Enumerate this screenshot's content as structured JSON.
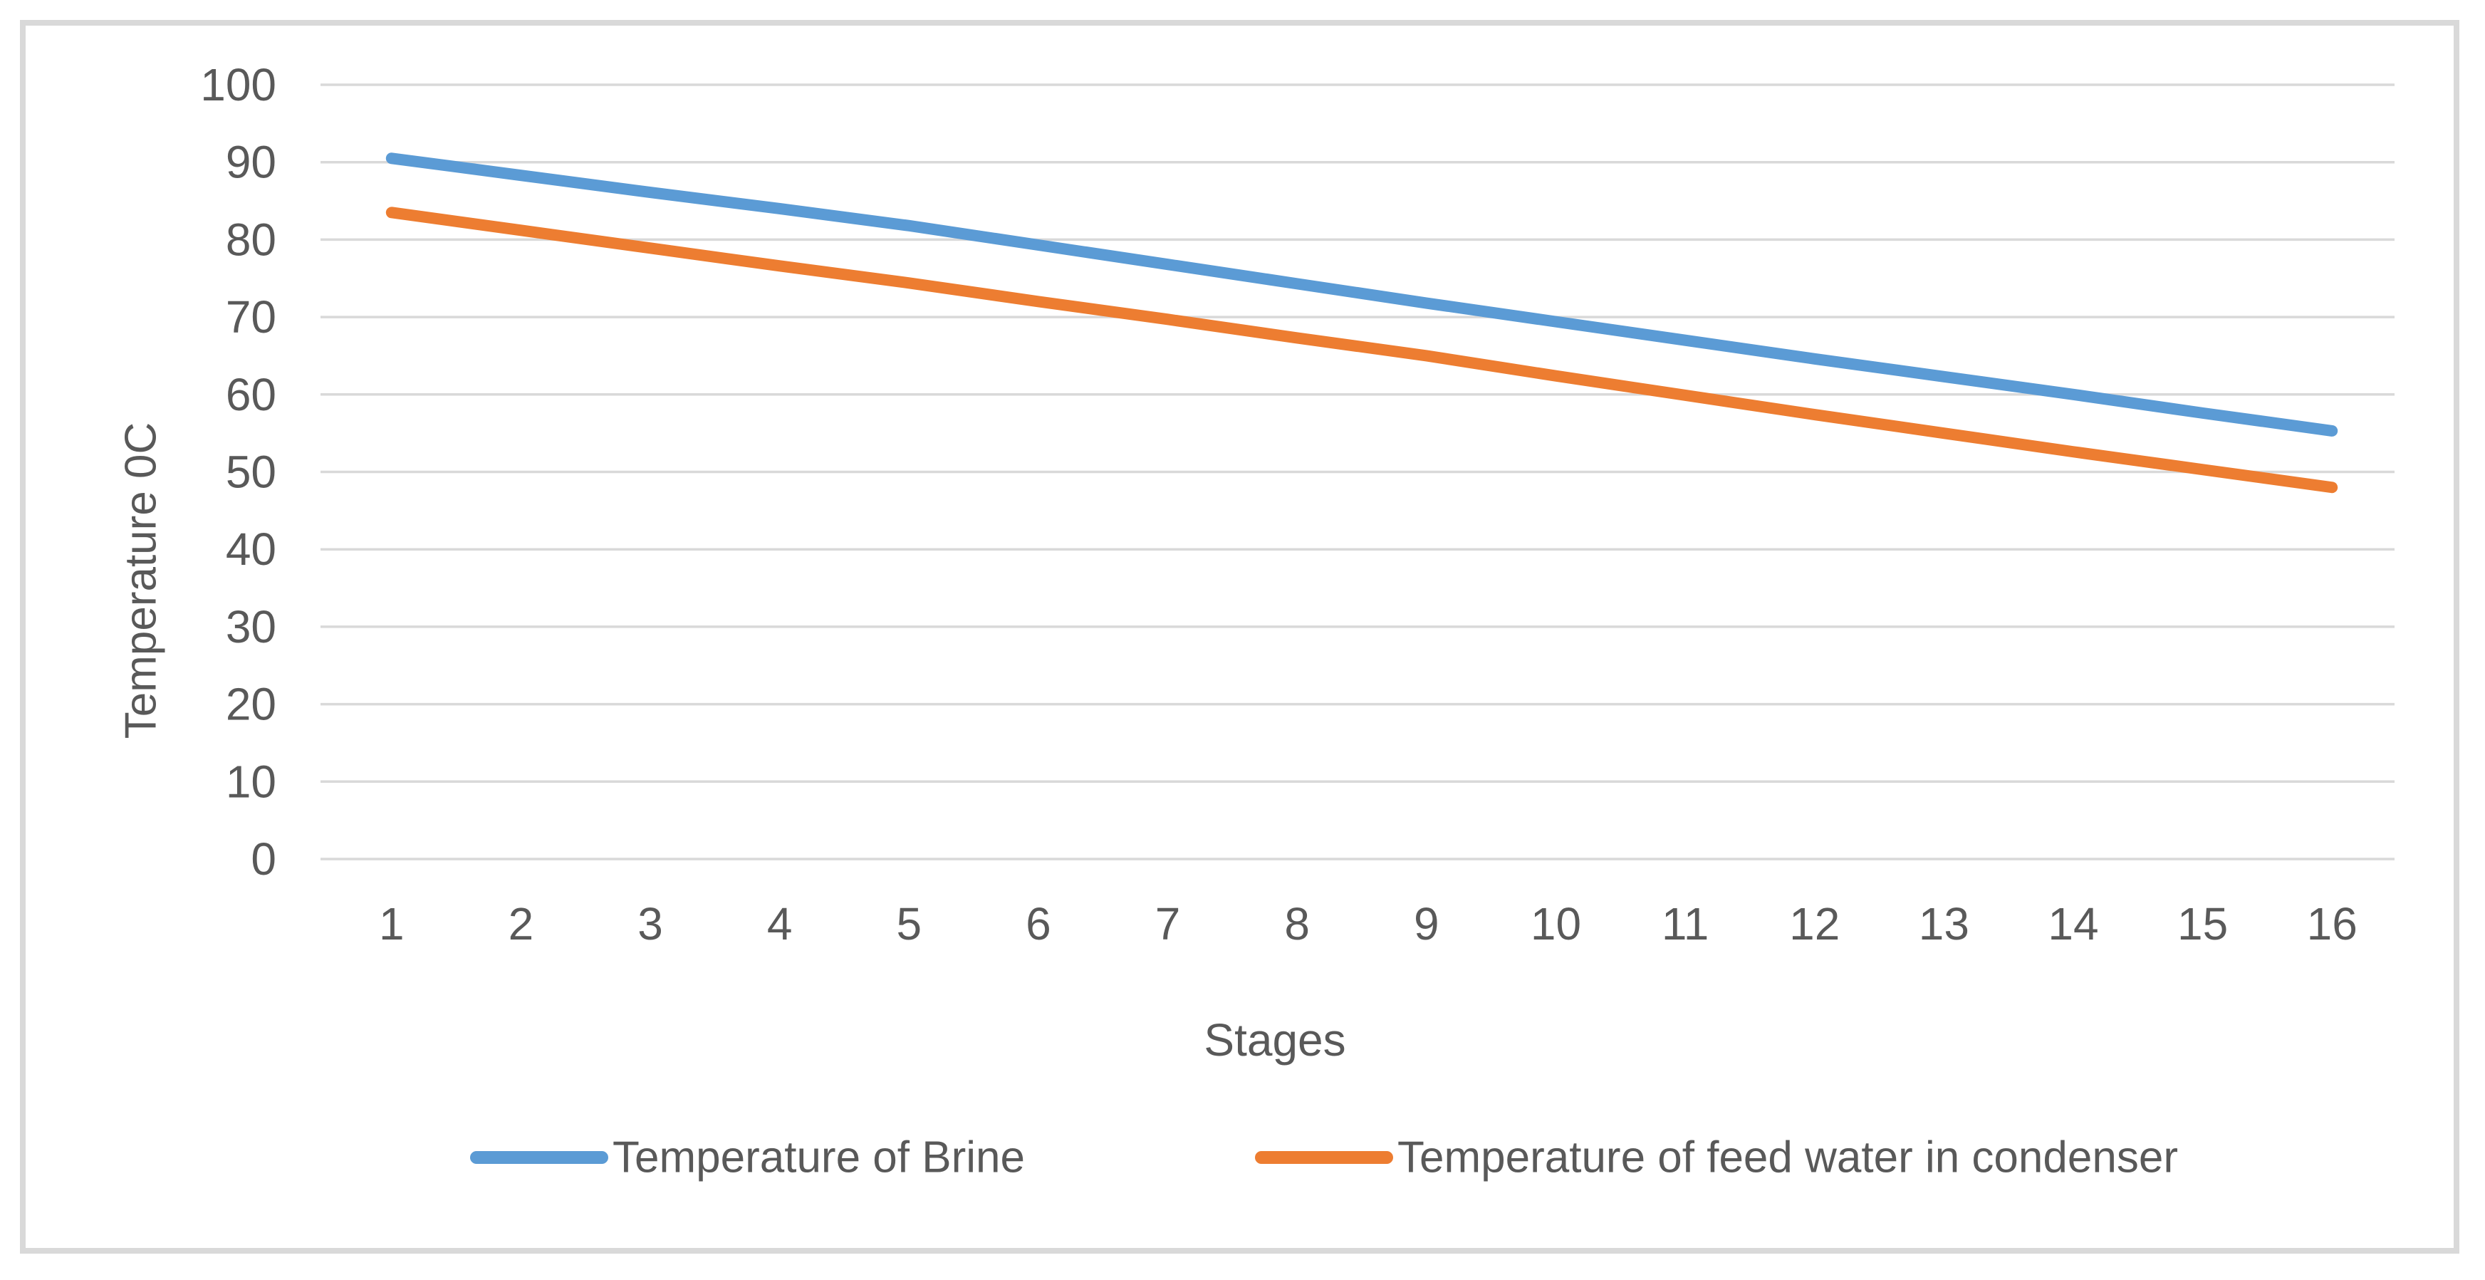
{
  "page": {
    "background_color": "#ffffff",
    "border_color": "#d9d9d9"
  },
  "chart_data": {
    "type": "line",
    "title": "",
    "xlabel": "Stages",
    "ylabel": "Temperature 0C",
    "x": [
      1,
      2,
      3,
      4,
      5,
      6,
      7,
      8,
      9,
      10,
      11,
      12,
      13,
      14,
      15,
      16
    ],
    "y_ticks": [
      0,
      10,
      20,
      30,
      40,
      50,
      60,
      70,
      80,
      90,
      100
    ],
    "ylim": [
      0,
      100
    ],
    "grid": "horizontal",
    "gridline_color": "#d9d9d9",
    "axis_text_color": "#595959",
    "legend_position": "bottom",
    "series": [
      {
        "name": "Temperature of Brine",
        "color": "#5B9BD5",
        "values": [
          90.5,
          88.3,
          86.1,
          84.0,
          81.8,
          79.3,
          76.8,
          74.3,
          71.8,
          69.4,
          67.0,
          64.6,
          62.3,
          60.0,
          57.6,
          55.3
        ]
      },
      {
        "name": "Temperature of feed water in condenser",
        "color": "#ED7D31",
        "values": [
          83.5,
          81.2,
          78.9,
          76.6,
          74.4,
          72.0,
          69.7,
          67.3,
          65.0,
          62.4,
          59.9,
          57.4,
          55.0,
          52.6,
          50.3,
          48.0
        ]
      }
    ]
  }
}
